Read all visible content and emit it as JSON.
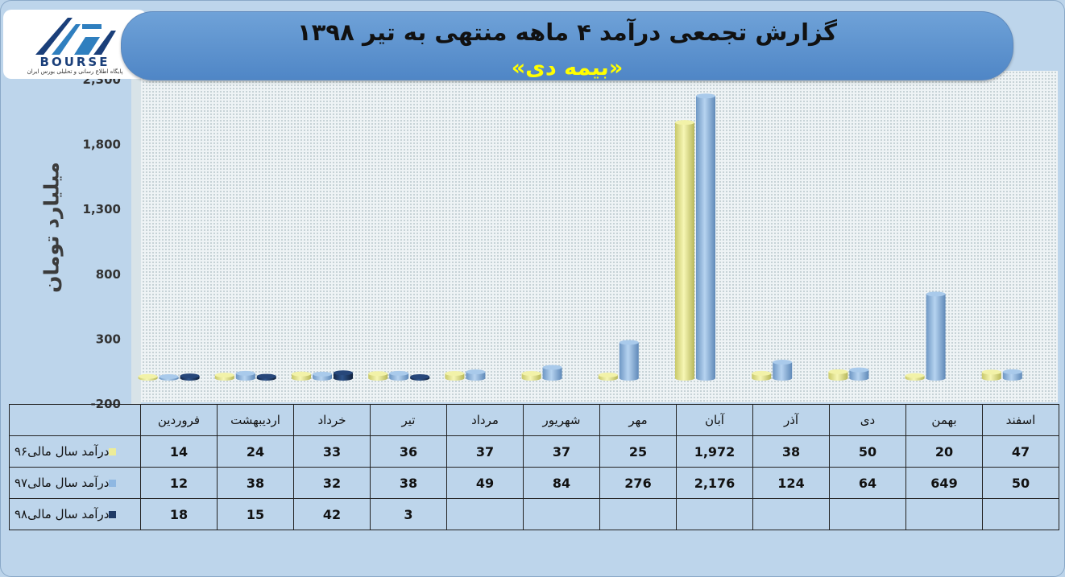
{
  "header": {
    "title": "گزارش تجمعی درآمد ۴ ماهه منتهی به تیر ۱۳۹۸",
    "subtitle": "«بیمه دی»",
    "logo_text": "BOURSE",
    "logo_subtext": "پایگاه اطلاع رسانی و تحلیلی بورس ایران"
  },
  "chart_data": {
    "type": "bar",
    "title": "گزارش تجمعی درآمد ۴ ماهه منتهی به تیر ۱۳۹۸",
    "subtitle": "«بیمه دی»",
    "ylabel": "میلیارد تومان",
    "ylim": [
      -200,
      2300
    ],
    "yticks": [
      "-200",
      "300",
      "800",
      "1,300",
      "1,800",
      "2,300"
    ],
    "ytick_values": [
      -200,
      300,
      800,
      1300,
      1800,
      2300
    ],
    "grid": false,
    "legend": "table-left",
    "categories": [
      "فروردین",
      "اردیبهشت",
      "خرداد",
      "تیر",
      "مرداد",
      "شهریور",
      "مهر",
      "آبان",
      "آذر",
      "دی",
      "بهمن",
      "اسفند"
    ],
    "series": [
      {
        "name": "درآمد سال مالی۹۶",
        "color": "#ecec98",
        "values": [
          14,
          24,
          33,
          36,
          37,
          37,
          25,
          1972,
          38,
          50,
          20,
          47
        ],
        "labels": [
          "14",
          "24",
          "33",
          "36",
          "37",
          "37",
          "25",
          "1,972",
          "38",
          "50",
          "20",
          "47"
        ]
      },
      {
        "name": "درآمد سال مالی۹۷",
        "color": "#8fb8e2",
        "values": [
          12,
          38,
          32,
          38,
          49,
          84,
          276,
          2176,
          124,
          64,
          649,
          50
        ],
        "labels": [
          "12",
          "38",
          "32",
          "38",
          "49",
          "84",
          "276",
          "2,176",
          "124",
          "64",
          "649",
          "50"
        ]
      },
      {
        "name": "درآمد سال مالی۹۸",
        "color": "#1e3a66",
        "values": [
          18,
          15,
          42,
          3,
          null,
          null,
          null,
          null,
          null,
          null,
          null,
          null
        ],
        "labels": [
          "18",
          "15",
          "42",
          "3",
          "",
          "",
          "",
          "",
          "",
          "",
          "",
          ""
        ]
      }
    ]
  }
}
